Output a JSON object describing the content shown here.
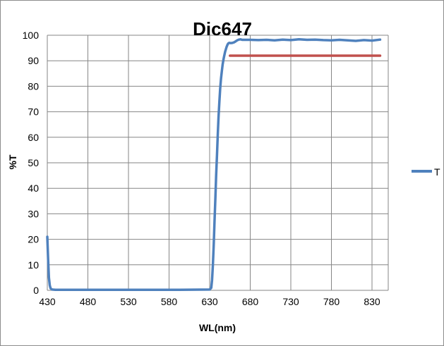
{
  "chart_data": {
    "type": "line",
    "title": "Dic647",
    "xlabel": "WL(nm)",
    "ylabel": "%T",
    "xlim": [
      430,
      850
    ],
    "ylim": [
      0,
      100
    ],
    "x_ticks": [
      430,
      480,
      530,
      580,
      630,
      680,
      730,
      780,
      830
    ],
    "y_ticks": [
      0,
      10,
      20,
      30,
      40,
      50,
      60,
      70,
      80,
      90,
      100
    ],
    "grid": true,
    "legend_position": "right",
    "series": [
      {
        "name": "T",
        "color": "#4f81bd",
        "x": [
          430,
          431,
          432,
          433,
          434,
          436,
          440,
          450,
          480,
          530,
          580,
          630,
          632,
          633,
          634,
          635,
          636,
          637,
          638,
          639,
          640,
          641,
          642,
          643,
          644,
          645,
          646,
          647,
          648,
          649,
          650,
          651,
          652,
          653,
          654,
          655,
          656,
          658,
          660,
          662,
          664,
          666,
          668,
          670,
          680,
          690,
          700,
          710,
          720,
          730,
          740,
          750,
          760,
          770,
          780,
          790,
          800,
          810,
          820,
          830,
          840
        ],
        "y": [
          21,
          12,
          5,
          2,
          0.8,
          0.3,
          0.2,
          0.2,
          0.2,
          0.2,
          0.2,
          0.3,
          1,
          4,
          10,
          18,
          27,
          36,
          45,
          53,
          61,
          68,
          74,
          79,
          83,
          86,
          88.5,
          90.5,
          92,
          93.5,
          94.5,
          95.5,
          96.3,
          96.8,
          97,
          97,
          96.9,
          97,
          97.2,
          97.6,
          98,
          98.3,
          98.4,
          98.2,
          98.2,
          98.1,
          98.2,
          98,
          98.3,
          98.1,
          98.4,
          98.2,
          98.3,
          98.1,
          98,
          98.2,
          98,
          97.8,
          98.1,
          97.9,
          98.3
        ]
      },
      {
        "name": "",
        "color": "#c0504d",
        "x": [
          655,
          840
        ],
        "y": [
          92,
          92
        ]
      }
    ]
  }
}
